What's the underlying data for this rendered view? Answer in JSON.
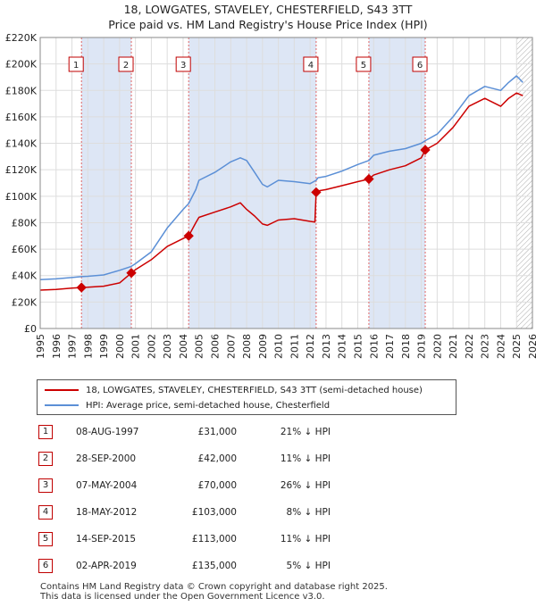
{
  "header": {
    "title_line1": "18, LOWGATES, STAVELEY, CHESTERFIELD, S43 3TT",
    "title_line2": "Price paid vs. HM Land Registry's House Price Index (HPI)"
  },
  "legend": {
    "series1_label": "18, LOWGATES, STAVELEY, CHESTERFIELD, S43 3TT (semi-detached house)",
    "series2_label": "HPI: Average price, semi-detached house, Chesterfield"
  },
  "colors": {
    "property": "#cc0000",
    "hpi": "#5b8fd6",
    "band": "#dde6f5",
    "grid": "#dddddd",
    "marker_border": "#c00000"
  },
  "transactions": [
    {
      "num": "1",
      "date": "08-AUG-1997",
      "price": "£31,000",
      "hpi": "21% ↓ HPI"
    },
    {
      "num": "2",
      "date": "28-SEP-2000",
      "price": "£42,000",
      "hpi": "11% ↓ HPI"
    },
    {
      "num": "3",
      "date": "07-MAY-2004",
      "price": "£70,000",
      "hpi": "26% ↓ HPI"
    },
    {
      "num": "4",
      "date": "18-MAY-2012",
      "price": "£103,000",
      "hpi": "8% ↓ HPI"
    },
    {
      "num": "5",
      "date": "14-SEP-2015",
      "price": "£113,000",
      "hpi": "11% ↓ HPI"
    },
    {
      "num": "6",
      "date": "02-APR-2019",
      "price": "£135,000",
      "hpi": "5% ↓ HPI"
    }
  ],
  "footer": {
    "line1": "Contains HM Land Registry data © Crown copyright and database right 2025.",
    "line2": "This data is licensed under the Open Government Licence v3.0."
  },
  "chart_data": {
    "type": "line",
    "title": "18, LOWGATES, STAVELEY, CHESTERFIELD, S43 3TT — Price paid vs. HM Land Registry's House Price Index (HPI)",
    "xlabel": "",
    "ylabel": "",
    "xlim": [
      1995,
      2026
    ],
    "ylim": [
      0,
      220000
    ],
    "x_ticks": [
      1995,
      1996,
      1997,
      1998,
      1999,
      2000,
      2001,
      2002,
      2003,
      2004,
      2005,
      2006,
      2007,
      2008,
      2009,
      2010,
      2011,
      2012,
      2013,
      2014,
      2015,
      2016,
      2017,
      2018,
      2019,
      2020,
      2021,
      2022,
      2023,
      2024,
      2025,
      2026
    ],
    "y_ticks": [
      0,
      20000,
      40000,
      60000,
      80000,
      100000,
      120000,
      140000,
      160000,
      180000,
      200000,
      220000
    ],
    "y_tick_labels": [
      "£0",
      "£20K",
      "£40K",
      "£60K",
      "£80K",
      "£100K",
      "£120K",
      "£140K",
      "£160K",
      "£180K",
      "£200K",
      "£220K"
    ],
    "grid": true,
    "hatched_from": 2025.0,
    "shaded_bands": [
      [
        1997.6,
        2000.74
      ],
      [
        2004.35,
        2012.38
      ],
      [
        2015.7,
        2019.25
      ]
    ],
    "sales": [
      {
        "label": "1",
        "x": 1997.6,
        "y": 31000
      },
      {
        "label": "2",
        "x": 2000.74,
        "y": 42000
      },
      {
        "label": "3",
        "x": 2004.35,
        "y": 70000
      },
      {
        "label": "4",
        "x": 2012.38,
        "y": 103000
      },
      {
        "label": "5",
        "x": 2015.7,
        "y": 113000
      },
      {
        "label": "6",
        "x": 2019.25,
        "y": 135000
      }
    ],
    "series": [
      {
        "name": "HPI: Average price, semi-detached house, Chesterfield",
        "x": [
          1995,
          1996,
          1997,
          1997.6,
          1998,
          1999,
          2000,
          2000.74,
          2001,
          2002,
          2003,
          2004,
          2004.35,
          2004.8,
          2005,
          2006,
          2007,
          2007.6,
          2008,
          2008.5,
          2009,
          2009.3,
          2010,
          2011,
          2012,
          2012.38,
          2012.5,
          2013,
          2014,
          2015,
          2015.7,
          2016,
          2017,
          2018,
          2019,
          2019.25,
          2020,
          2021,
          2022,
          2023,
          2024,
          2024.5,
          2025,
          2025.4
        ],
        "y": [
          37000,
          37500,
          38500,
          39200,
          39500,
          40500,
          44000,
          47000,
          49000,
          58000,
          76000,
          90000,
          94500,
          105000,
          112000,
          118000,
          126000,
          129000,
          127000,
          118000,
          109000,
          107000,
          112000,
          111000,
          109500,
          112000,
          114000,
          115000,
          119000,
          124000,
          127000,
          131000,
          134000,
          136000,
          140000,
          142000,
          147000,
          160000,
          176000,
          183000,
          180000,
          186000,
          191000,
          186000
        ]
      },
      {
        "name": "18, LOWGATES, STAVELEY, CHESTERFIELD, S43 3TT (semi-detached house)",
        "x": [
          1995,
          1996,
          1997,
          1997.6,
          1998,
          1999,
          2000,
          2000.74,
          2001,
          2002,
          2003,
          2004,
          2004.35,
          2004.8,
          2005,
          2006,
          2007,
          2007.6,
          2008,
          2008.5,
          2009,
          2009.3,
          2010,
          2011,
          2012,
          2012.3,
          2012.38,
          2012.5,
          2013,
          2014,
          2015,
          2015.7,
          2016,
          2017,
          2018,
          2019,
          2019.25,
          2020,
          2021,
          2022,
          2023,
          2024,
          2024.5,
          2025,
          2025.4
        ],
        "y": [
          29000,
          29500,
          30500,
          31000,
          31200,
          32000,
          34500,
          42000,
          44500,
          52000,
          62000,
          68000,
          70000,
          80000,
          84000,
          88000,
          92000,
          95000,
          90000,
          85000,
          79000,
          78000,
          82000,
          83000,
          81000,
          80500,
          103000,
          104000,
          105000,
          108000,
          111000,
          113000,
          116000,
          120000,
          123000,
          129000,
          135000,
          140000,
          152000,
          168000,
          174000,
          168000,
          174000,
          178000,
          176000
        ]
      }
    ]
  }
}
